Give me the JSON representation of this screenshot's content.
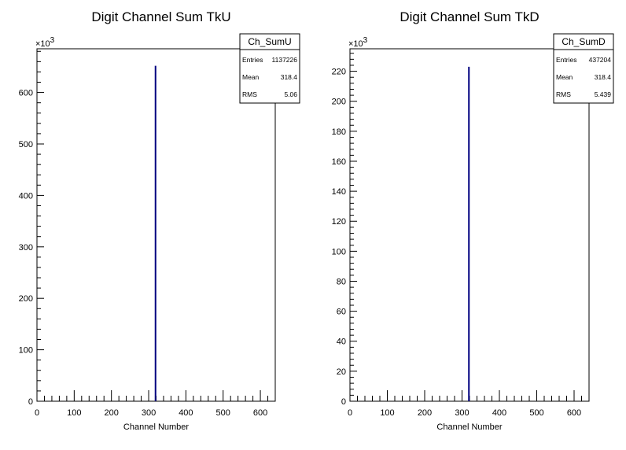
{
  "chart_data": [
    {
      "type": "bar",
      "title": "Digit Channel Sum TkU",
      "xlabel": "Channel Number",
      "ylabel": "",
      "y_multiplier": "×10",
      "y_multiplier_exp": "3",
      "xlim": [
        0,
        640
      ],
      "ylim": [
        0,
        685
      ],
      "x_ticks": [
        0,
        100,
        200,
        300,
        400,
        500,
        600
      ],
      "y_ticks": [
        0,
        100,
        200,
        300,
        400,
        500,
        600
      ],
      "bars": [
        {
          "x": 318.4,
          "value": 652
        }
      ],
      "line_color": "#000080",
      "stats": {
        "name": "Ch_SumU",
        "rows": [
          {
            "label": "Entries",
            "value": "1137226"
          },
          {
            "label": "Mean",
            "value": "318.4"
          },
          {
            "label": "RMS",
            "value": "5.06"
          }
        ]
      }
    },
    {
      "type": "bar",
      "title": "Digit Channel Sum TkD",
      "xlabel": "Channel Number",
      "ylabel": "",
      "y_multiplier": "×10",
      "y_multiplier_exp": "3",
      "xlim": [
        0,
        640
      ],
      "ylim": [
        0,
        235
      ],
      "x_ticks": [
        0,
        100,
        200,
        300,
        400,
        500,
        600
      ],
      "y_ticks": [
        0,
        20,
        40,
        60,
        80,
        100,
        120,
        140,
        160,
        180,
        200,
        220
      ],
      "bars": [
        {
          "x": 318.4,
          "value": 223
        }
      ],
      "line_color": "#000080",
      "stats": {
        "name": "Ch_SumD",
        "rows": [
          {
            "label": "Entries",
            "value": "437204"
          },
          {
            "label": "Mean",
            "value": "318.4"
          },
          {
            "label": "RMS",
            "value": "5.439"
          }
        ]
      }
    }
  ]
}
